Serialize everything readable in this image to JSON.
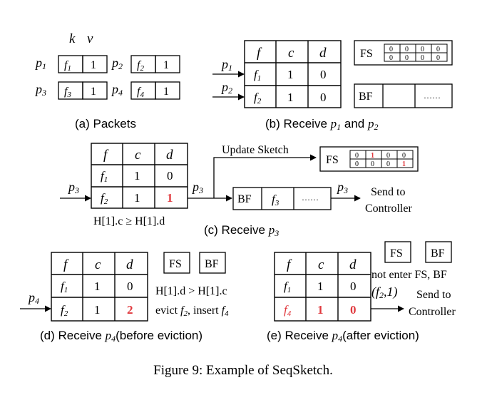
{
  "caption": "Figure 9: Example of SeqSketch.",
  "colors": {
    "highlight": "#e0393e",
    "stroke": "#000000",
    "background": "#ffffff"
  },
  "panel_a": {
    "header_k": "k",
    "header_v": "v",
    "packets": [
      {
        "label": "p",
        "sub": "1",
        "key": "f",
        "key_sub": "1",
        "value": "1"
      },
      {
        "label": "p",
        "sub": "2",
        "key": "f",
        "key_sub": "2",
        "value": "1"
      },
      {
        "label": "p",
        "sub": "3",
        "key": "f",
        "key_sub": "3",
        "value": "1"
      },
      {
        "label": "p",
        "sub": "4",
        "key": "f",
        "key_sub": "4",
        "value": "1"
      }
    ],
    "caption": "(a) Packets"
  },
  "panel_b": {
    "headers": [
      "f",
      "c",
      "d"
    ],
    "rows": [
      {
        "f": "f",
        "f_sub": "1",
        "c": "1",
        "d": "0",
        "in": "p",
        "in_sub": "1"
      },
      {
        "f": "f",
        "f_sub": "2",
        "c": "1",
        "d": "0",
        "in": "p",
        "in_sub": "2"
      }
    ],
    "fs_label": "FS",
    "fs_bits": [
      "0",
      "0",
      "0",
      "0",
      "0",
      "0",
      "0",
      "0"
    ],
    "bf_label": "BF",
    "bf_dots": "……",
    "caption_prefix": "(b) Receive ",
    "caption_p1": "p",
    "caption_p1_sub": "1",
    "caption_and": " and ",
    "caption_p2": "p",
    "caption_p2_sub": "2"
  },
  "panel_c": {
    "headers": [
      "f",
      "c",
      "d"
    ],
    "rows": [
      {
        "f": "f",
        "f_sub": "1",
        "c": "1",
        "d": "0"
      },
      {
        "f": "f",
        "f_sub": "2",
        "c": "1",
        "d": "1"
      }
    ],
    "input": "p",
    "input_sub": "3",
    "out1": "p",
    "out1_sub": "3",
    "out2": "p",
    "out2_sub": "3",
    "update_text": "Update Sketch",
    "fs_label": "FS",
    "fs_bits": [
      "0",
      "1",
      "0",
      "0",
      "0",
      "0",
      "0",
      "1"
    ],
    "bf_label": "BF",
    "bf_item": "f",
    "bf_item_sub": "3",
    "bf_dots": "……",
    "send1": "Send to",
    "send2": "Controller",
    "condition": "H[1].c ≥ H[1].d",
    "caption_prefix": "(c) Receive ",
    "caption_p": "p",
    "caption_sub": "3"
  },
  "panel_d": {
    "headers": [
      "f",
      "c",
      "d"
    ],
    "rows": [
      {
        "f": "f",
        "f_sub": "1",
        "c": "1",
        "d": "0"
      },
      {
        "f": "f",
        "f_sub": "2",
        "c": "1",
        "d": "2"
      }
    ],
    "input": "p",
    "input_sub": "4",
    "fs_label": "FS",
    "bf_label": "BF",
    "condition": "H[1].d > H[1].c",
    "evict_a": "evict ",
    "evict_f": "f",
    "evict_f_sub": "2",
    "evict_b": ", insert ",
    "insert_f": "f",
    "insert_f_sub": "4",
    "caption_prefix": "(d) Receive ",
    "caption_p": "p",
    "caption_sub": "4",
    "caption_suffix": "(before eviction)"
  },
  "panel_e": {
    "headers": [
      "f",
      "c",
      "d"
    ],
    "rows": [
      {
        "f": "f",
        "f_sub": "1",
        "c": "1",
        "d": "0"
      },
      {
        "f": "f",
        "f_sub": "4",
        "c": "1",
        "d": "0"
      }
    ],
    "fs_label": "FS",
    "bf_label": "BF",
    "note": "not enter FS, BF",
    "pair": "(f",
    "pair_sub": "2",
    "pair_end": ",1)",
    "send1": "Send to",
    "send2": "Controller",
    "caption_prefix": "(e) Receive ",
    "caption_p": "p",
    "caption_sub": "4",
    "caption_suffix": "(after eviction)"
  }
}
